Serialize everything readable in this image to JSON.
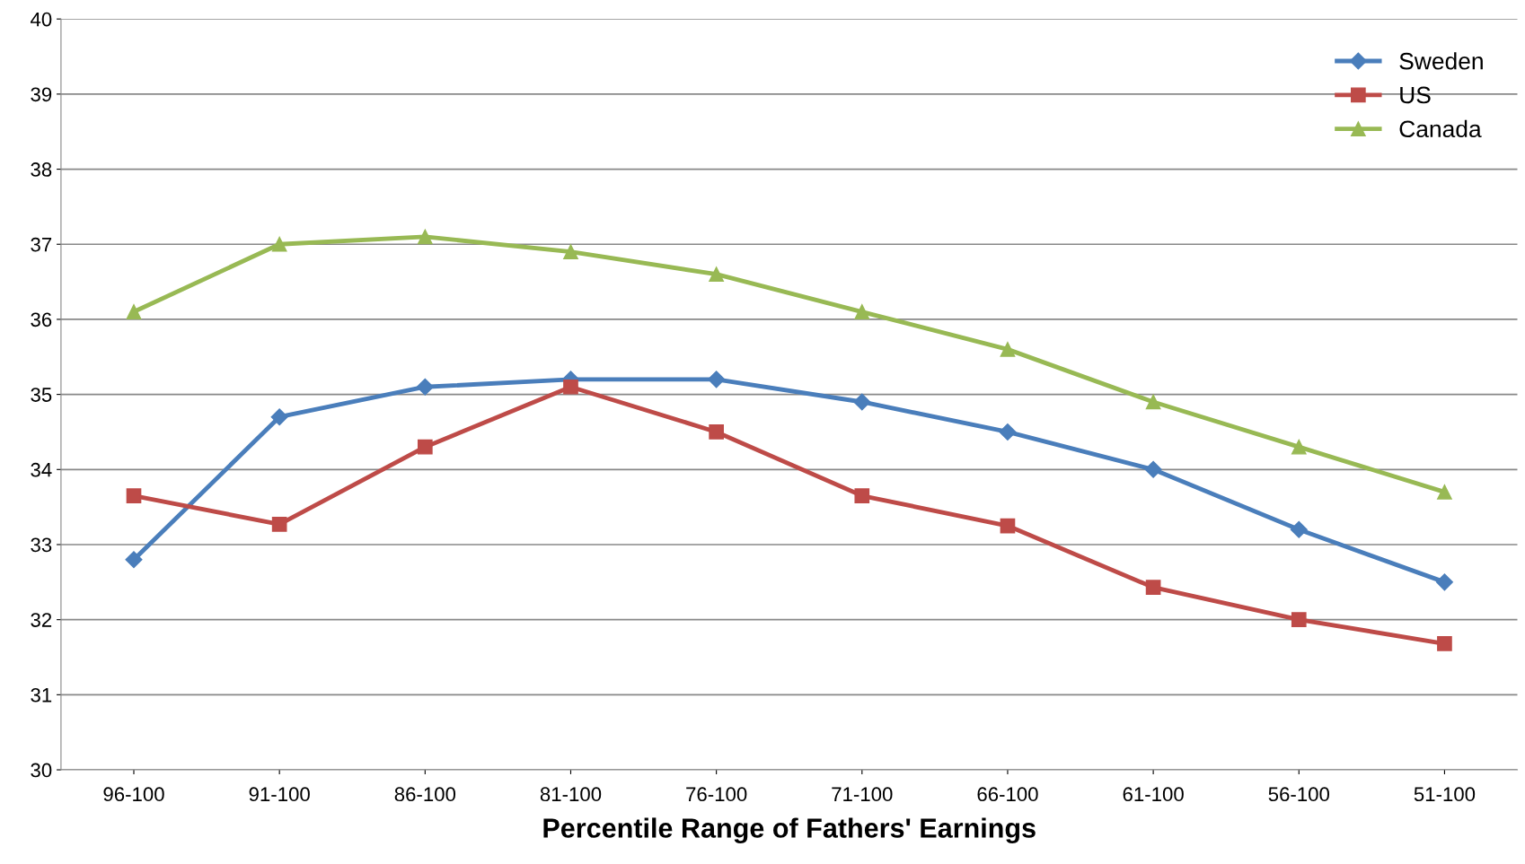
{
  "chart_data": {
    "type": "line",
    "xlabel": "Percentile Range of Fathers' Earnings",
    "categories": [
      "96-100",
      "91-100",
      "86-100",
      "81-100",
      "76-100",
      "71-100",
      "66-100",
      "61-100",
      "56-100",
      "51-100"
    ],
    "series": [
      {
        "name": "Sweden",
        "color": "#4a7ebb",
        "marker": "diamond",
        "values": [
          32.8,
          34.7,
          35.1,
          35.2,
          35.2,
          34.9,
          34.5,
          34.0,
          33.2,
          32.5
        ]
      },
      {
        "name": "US",
        "color": "#be4b48",
        "marker": "square",
        "values": [
          33.65,
          33.27,
          34.3,
          35.1,
          34.5,
          33.65,
          33.25,
          32.43,
          32.0,
          31.68
        ]
      },
      {
        "name": "Canada",
        "color": "#98b954",
        "marker": "triangle",
        "values": [
          36.1,
          37.0,
          37.1,
          36.9,
          36.6,
          36.1,
          35.6,
          34.9,
          34.3,
          33.7
        ]
      }
    ],
    "ylim": [
      30,
      40
    ],
    "yticks": [
      30,
      31,
      32,
      33,
      34,
      35,
      36,
      37,
      38,
      39,
      40
    ],
    "grid": "y",
    "legend": "top right",
    "line_style": "solid"
  }
}
